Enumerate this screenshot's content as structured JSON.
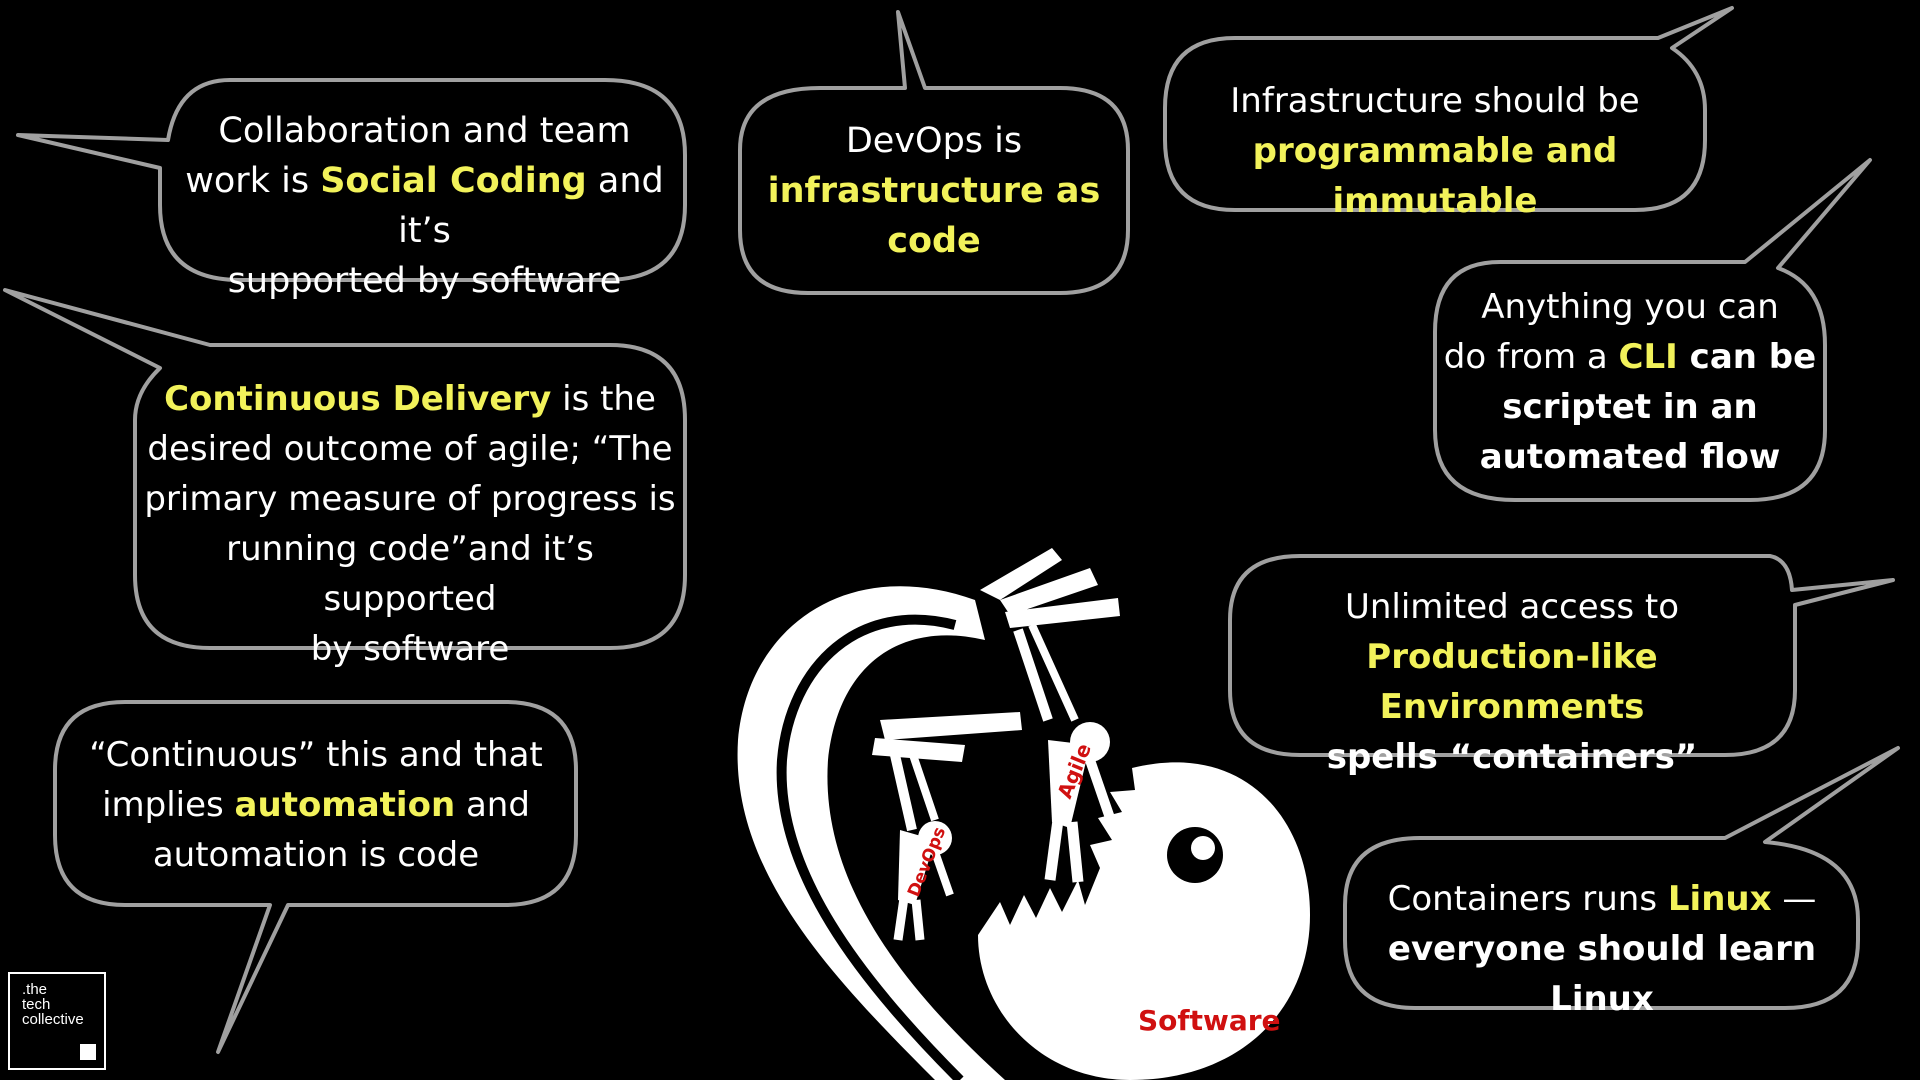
{
  "bubbles": {
    "social": {
      "line1": "Collaboration and team",
      "line2_pre": "work is ",
      "line2_hl": "Social Coding",
      "line2_post": " and it’s",
      "line3": "supported by software"
    },
    "devops": {
      "line1": "DevOps is",
      "line2_hl": "infrastructure as",
      "line3_hl": "code"
    },
    "infra": {
      "line1": "Infrastructure should be",
      "line2_hl": "programmable and immutable"
    },
    "cli": {
      "line1": "Anything you can",
      "line2_pre": "do from a ",
      "line2_hl": "CLI",
      "line2_post": " can be",
      "line3": "scriptet in an",
      "line4": "automated flow"
    },
    "cd": {
      "line1_hl": "Continuous Delivery",
      "line1_post": " is the",
      "line2": "desired outcome of agile; “The",
      "line3": "primary measure of progress is",
      "line4": "running code”and it’s supported",
      "line5": "by software"
    },
    "envs": {
      "line1": "Unlimited access to",
      "line2_hl": "Production-like Environments",
      "line3": "spells “containers”"
    },
    "automation": {
      "line1": "“Continuous” this and that",
      "line2_pre": "implies ",
      "line2_hl": "automation",
      "line2_post": " and",
      "line3": "automation is code"
    },
    "linux": {
      "line1_pre": "Containers runs ",
      "line1_hl": "Linux",
      "line1_post": " —",
      "line2": "everyone should learn Linux"
    }
  },
  "illustration": {
    "label_devops": "DevOps",
    "label_agile": "Agile",
    "label_software": "Software"
  },
  "logo": {
    "line1": ".the",
    "line2": "tech",
    "line3": "collective"
  },
  "colors": {
    "background": "#000000",
    "highlight": "#f2f25a",
    "bubble_border": "#a0a0a0",
    "label_red": "#d01010"
  }
}
